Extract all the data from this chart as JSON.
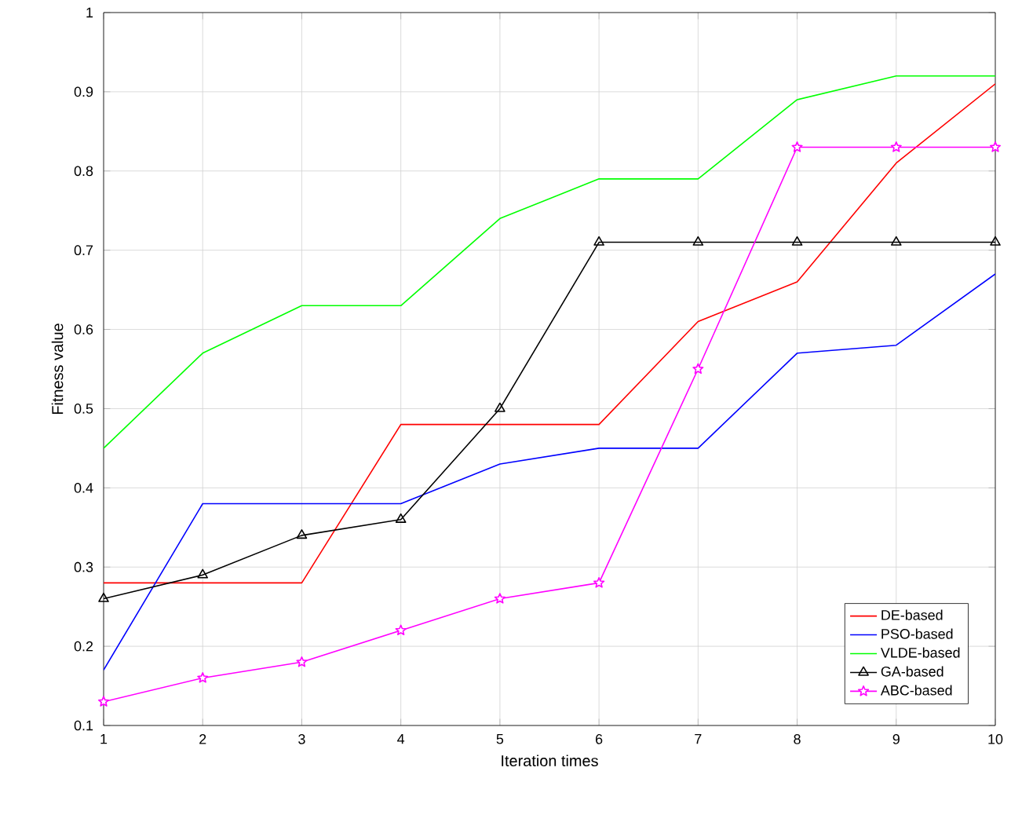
{
  "chart_data": {
    "type": "line",
    "xlabel": "Iteration times",
    "ylabel": "Fitness value",
    "x": [
      1,
      2,
      3,
      4,
      5,
      6,
      7,
      8,
      9,
      10
    ],
    "series": [
      {
        "name": "DE-based",
        "color": "#ff0000",
        "marker": "none",
        "values": [
          0.28,
          0.28,
          0.28,
          0.48,
          0.48,
          0.48,
          0.61,
          0.66,
          0.81,
          0.91
        ]
      },
      {
        "name": "PSO-based",
        "color": "#0000ff",
        "marker": "none",
        "values": [
          0.17,
          0.38,
          0.38,
          0.38,
          0.43,
          0.45,
          0.45,
          0.57,
          0.58,
          0.67
        ]
      },
      {
        "name": "VLDE-based",
        "color": "#00ff00",
        "marker": "none",
        "values": [
          0.45,
          0.57,
          0.63,
          0.63,
          0.74,
          0.79,
          0.79,
          0.89,
          0.92,
          0.92
        ]
      },
      {
        "name": "GA-based",
        "color": "#000000",
        "marker": "triangle",
        "values": [
          0.26,
          0.29,
          0.34,
          0.36,
          0.5,
          0.71,
          0.71,
          0.71,
          0.71,
          0.71
        ]
      },
      {
        "name": "ABC-based",
        "color": "#ff00ff",
        "marker": "star",
        "values": [
          0.13,
          0.16,
          0.18,
          0.22,
          0.26,
          0.28,
          0.55,
          0.83,
          0.83,
          0.83
        ]
      }
    ],
    "xlim": [
      1,
      10
    ],
    "ylim": [
      0.1,
      1
    ],
    "xticks": [
      1,
      2,
      3,
      4,
      5,
      6,
      7,
      8,
      9,
      10
    ],
    "yticks": [
      0.1,
      0.2,
      0.3,
      0.4,
      0.5,
      0.6,
      0.7,
      0.8,
      0.9,
      1
    ],
    "grid": true,
    "legend": "bottom right"
  }
}
